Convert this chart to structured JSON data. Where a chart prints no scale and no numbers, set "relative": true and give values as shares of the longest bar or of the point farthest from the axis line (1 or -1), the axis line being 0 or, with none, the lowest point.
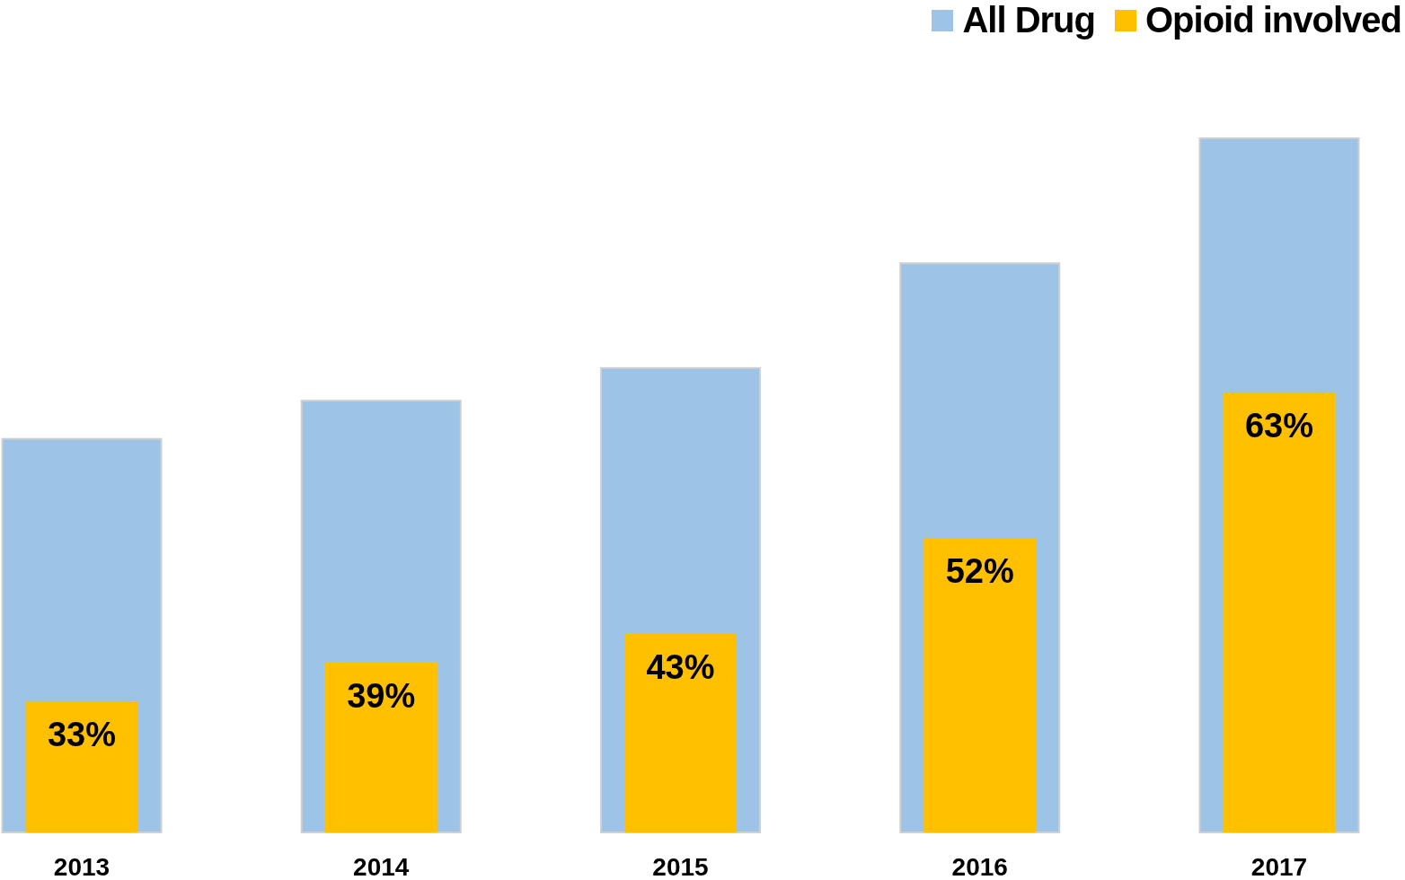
{
  "chart_data": {
    "type": "bar",
    "relative": true,
    "categories": [
      "2013",
      "2014",
      "2015",
      "2016",
      "2017"
    ],
    "series": [
      {
        "name": "All Drug",
        "color": "#9dc3e6",
        "values": [
          0.567,
          0.622,
          0.669,
          0.82,
          1
        ]
      },
      {
        "name": "Opioid involved",
        "color": "#ffc000",
        "values": [
          0.189,
          0.245,
          0.286,
          0.424,
          0.634
        ]
      }
    ],
    "annotations": [
      {
        "text": "33%",
        "x": "2013",
        "y": 0.189
      },
      {
        "text": "39%",
        "x": "2014",
        "y": 0.245
      },
      {
        "text": "43%",
        "x": "2015",
        "y": 0.286
      },
      {
        "text": "52%",
        "x": "2016",
        "y": 0.424
      },
      {
        "text": "63%",
        "x": "2017",
        "y": 0.634
      }
    ],
    "legend": "top right"
  }
}
